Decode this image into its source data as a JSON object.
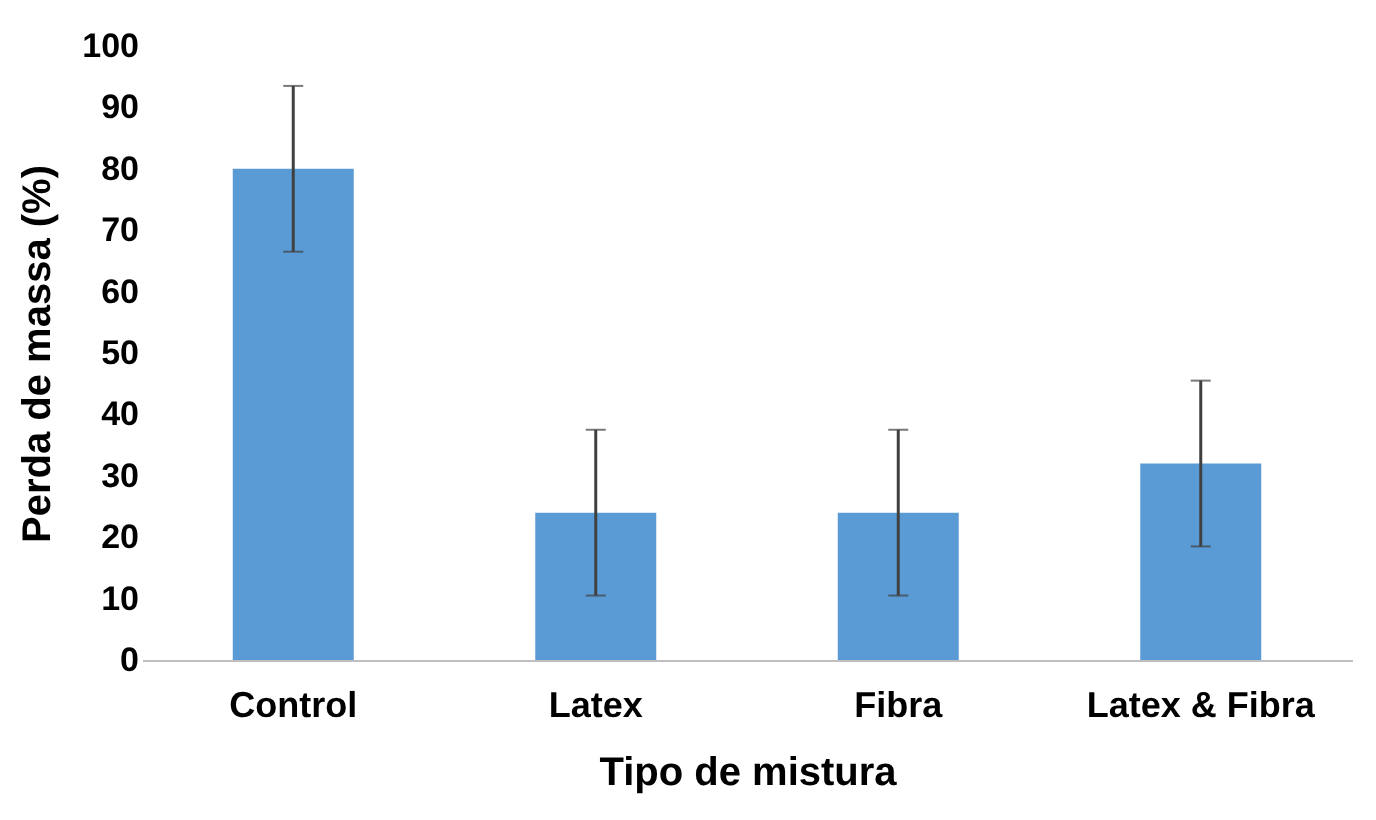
{
  "chart_data": {
    "type": "bar",
    "xlabel": "Tipo de mistura",
    "ylabel": "Perda de massa (%)",
    "categories": [
      "Control",
      "Latex",
      "Fibra",
      "Latex & Fibra"
    ],
    "values": [
      80,
      24,
      24,
      32
    ],
    "errors": [
      13.5,
      13.5,
      13.5,
      13.5
    ],
    "color": "#5b9bd5",
    "ylim": [
      0,
      100
    ],
    "yticks": [
      0,
      10,
      20,
      30,
      40,
      50,
      60,
      70,
      80,
      90,
      100
    ],
    "grid": false
  }
}
